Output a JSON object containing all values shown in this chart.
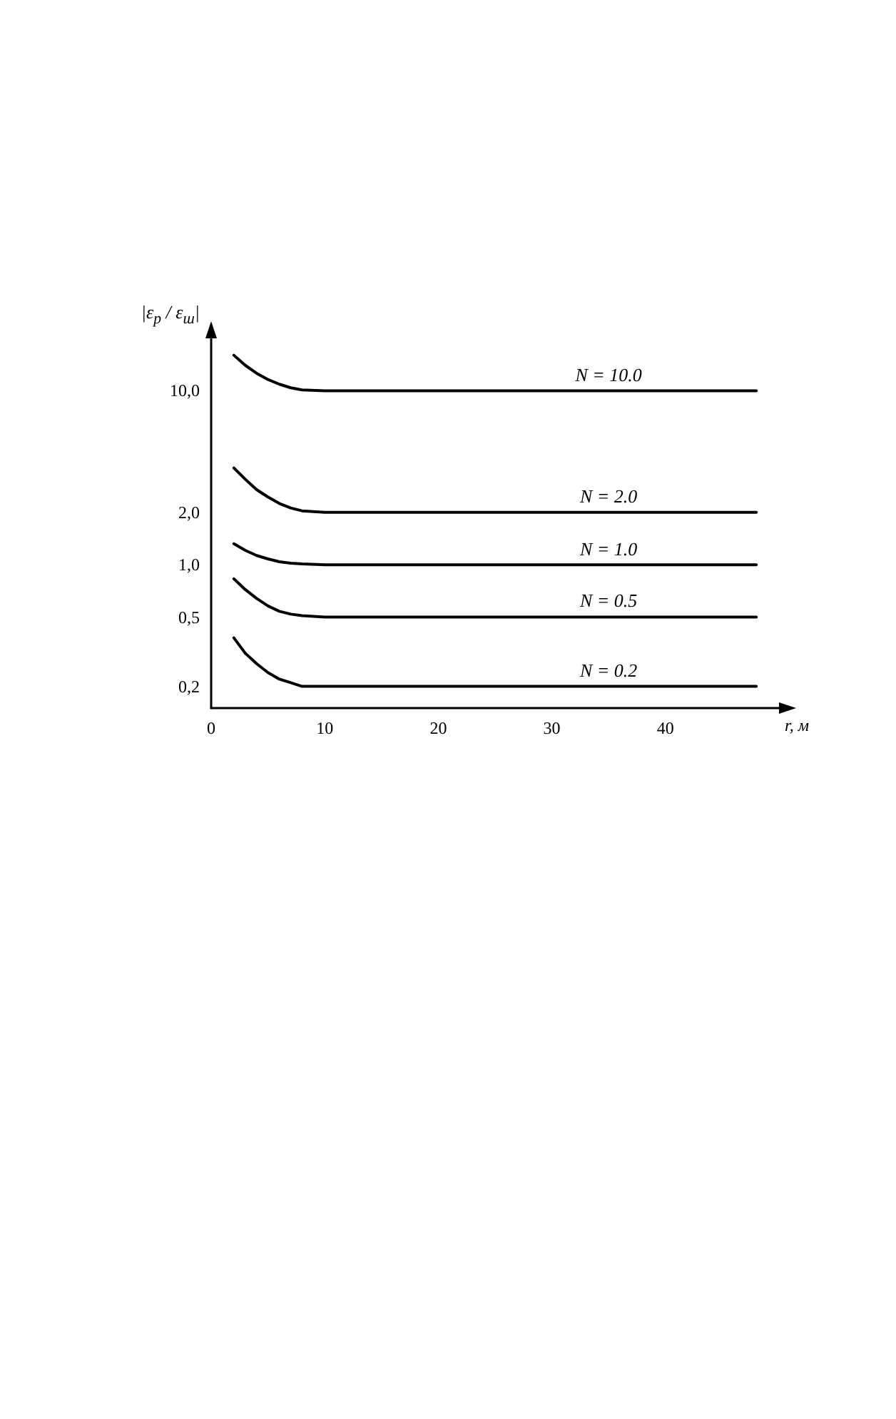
{
  "chart_data": {
    "type": "line",
    "xlabel": "r, м",
    "ylabel": "|ε$_{р}$ / ε$_{ш}$|",
    "x": [
      2,
      3,
      4,
      5,
      6,
      7,
      8,
      10,
      15,
      35,
      48
    ],
    "series": [
      {
        "name": "N = 10.0",
        "color": "#000000",
        "values": [
          16,
          14,
          12.6,
          11.6,
          10.9,
          10.4,
          10.1,
          10,
          10,
          10,
          10
        ]
      },
      {
        "name": "N = 2.0",
        "color": "#000000",
        "values": [
          3.6,
          3.1,
          2.7,
          2.45,
          2.25,
          2.12,
          2.04,
          2,
          2,
          2,
          2
        ]
      },
      {
        "name": "N = 1.0",
        "color": "#000000",
        "values": [
          1.32,
          1.21,
          1.13,
          1.08,
          1.04,
          1.02,
          1.01,
          1,
          1,
          1,
          1
        ]
      },
      {
        "name": "N = 0.5",
        "color": "#000000",
        "values": [
          0.83,
          0.72,
          0.64,
          0.58,
          0.54,
          0.52,
          0.51,
          0.5,
          0.5,
          0.5,
          0.5
        ]
      },
      {
        "name": "N = 0.2",
        "color": "#000000",
        "values": [
          0.38,
          0.31,
          0.27,
          0.24,
          0.22,
          0.21,
          0.2,
          0.2,
          0.2,
          0.2,
          0.2
        ]
      }
    ],
    "xlim": [
      0,
      50
    ],
    "xticks": [
      0,
      10,
      20,
      30,
      40
    ],
    "ylim": [
      0.15,
      20
    ],
    "log": true,
    "yticks": [
      {
        "value": 0.2,
        "label": "0,2"
      },
      {
        "value": 0.5,
        "label": "0,5"
      },
      {
        "value": 1,
        "label": "1,0"
      },
      {
        "value": 2,
        "label": "2,0"
      },
      {
        "value": 10,
        "label": "10,0"
      }
    ],
    "grid": false,
    "legend": false,
    "marker": "none",
    "line_style": "solid"
  }
}
